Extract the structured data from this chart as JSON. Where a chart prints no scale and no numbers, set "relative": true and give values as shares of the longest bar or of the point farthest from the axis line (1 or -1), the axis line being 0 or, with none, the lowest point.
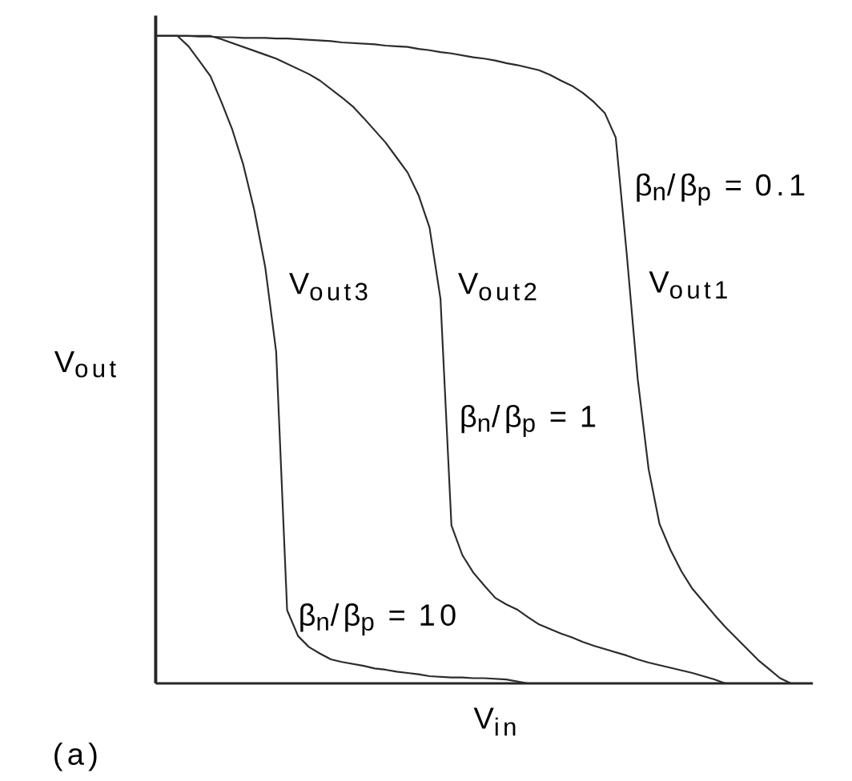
{
  "chart_data": {
    "type": "line",
    "relative": true,
    "tick_labels": false,
    "xlabel": "V$_{in}$",
    "ylabel": "V$_{out}$",
    "annotations": [
      "β$_{n}$/β$_{p}$ = 0.1",
      "β$_{n}$/β$_{p}$ = 1",
      "β$_{n}$/β$_{p}$ = 10",
      "(a)"
    ],
    "categories": [
      null,
      null,
      null,
      null,
      null,
      null,
      null,
      null,
      null,
      null,
      null,
      null,
      null,
      null,
      null,
      null,
      null,
      null,
      null,
      null,
      null,
      null,
      null,
      null,
      null,
      null,
      null,
      null,
      null,
      null,
      null,
      null,
      null,
      null,
      null,
      null,
      null,
      null,
      null,
      null,
      null,
      null,
      null,
      null,
      null,
      null,
      null,
      null,
      null,
      null,
      null,
      null,
      null,
      null,
      null,
      null,
      null,
      null,
      null,
      null,
      null
    ],
    "series": [
      {
        "name": "V$_{out1}$",
        "color": "#2b2b2b",
        "values": [
          1,
          1,
          1,
          1,
          0.999,
          0.999,
          0.998,
          0.998,
          0.997,
          0.997,
          0.997,
          0.996,
          0.996,
          0.995,
          0.994,
          0.993,
          0.992,
          0.99,
          0.989,
          0.988,
          0.987,
          0.985,
          0.984,
          0.983,
          0.98,
          0.978,
          0.975,
          0.973,
          0.97,
          0.967,
          0.965,
          0.962,
          0.958,
          0.955,
          0.951,
          0.947,
          0.94,
          0.931,
          0.923,
          0.912,
          0.898,
          0.881,
          0.843,
          0.664,
          0.471,
          0.331,
          0.246,
          0.206,
          0.173,
          0.146,
          0.126,
          0.106,
          0.087,
          0.07,
          0.053,
          0.036,
          0.022,
          0.008,
          0,
          null,
          null
        ]
      },
      {
        "name": "V$_{out2}$",
        "color": "#2b2b2b",
        "values": [
          1,
          1,
          1,
          1,
          1,
          1,
          0.995,
          0.989,
          0.983,
          0.977,
          0.971,
          0.965,
          0.957,
          0.949,
          0.941,
          0.931,
          0.918,
          0.905,
          0.891,
          0.873,
          0.854,
          0.835,
          0.812,
          0.789,
          0.754,
          0.704,
          0.594,
          0.244,
          0.198,
          0.171,
          0.151,
          0.132,
          0.122,
          0.114,
          0.102,
          0.091,
          0.084,
          0.077,
          0.071,
          0.064,
          0.058,
          0.053,
          0.048,
          0.043,
          0.037,
          0.032,
          0.028,
          0.024,
          0.02,
          0.016,
          0.011,
          0.006,
          0,
          null,
          null,
          null,
          null,
          null,
          null,
          null,
          null
        ]
      },
      {
        "name": "V$_{out3}$",
        "color": "#2b2b2b",
        "values": [
          1,
          1,
          1,
          0.984,
          0.961,
          0.938,
          0.898,
          0.855,
          0.801,
          0.731,
          0.643,
          0.512,
          0.113,
          0.073,
          0.056,
          0.046,
          0.037,
          0.033,
          0.03,
          0.027,
          0.023,
          0.021,
          0.018,
          0.016,
          0.014,
          0.011,
          0.01,
          0.009,
          0.009,
          0.008,
          0.008,
          0.007,
          0.006,
          0.003,
          0,
          null,
          null,
          null,
          null,
          null,
          null,
          null,
          null,
          null,
          null,
          null,
          null,
          null,
          null,
          null,
          null,
          null,
          null,
          null,
          null,
          null,
          null,
          null,
          null,
          null,
          null
        ]
      }
    ]
  }
}
